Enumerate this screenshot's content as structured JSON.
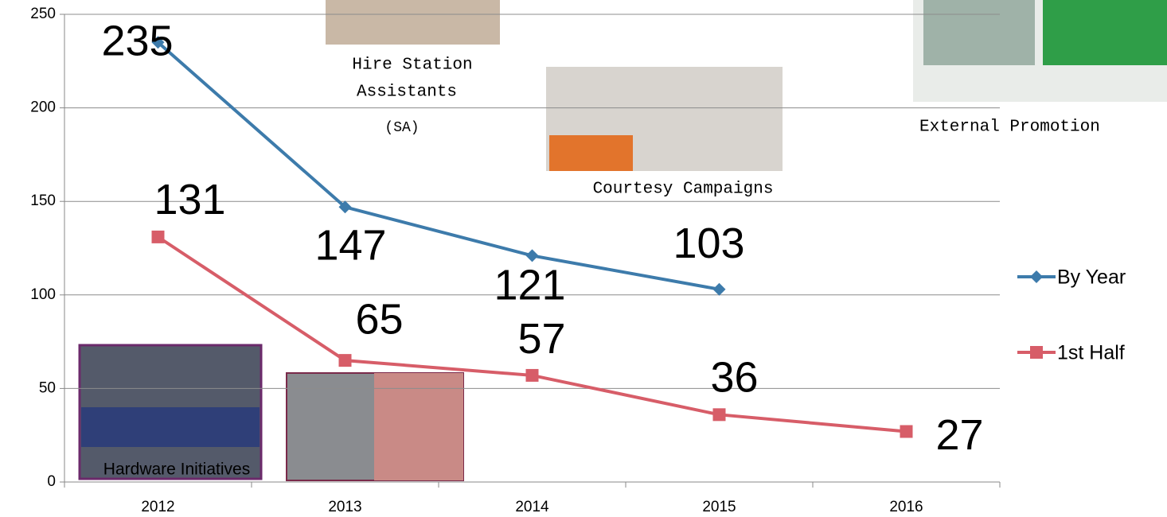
{
  "chart_data": {
    "type": "line",
    "categories": [
      "2012",
      "2013",
      "2014",
      "2015",
      "2016"
    ],
    "series": [
      {
        "name": "By Year",
        "color": "#3d7bab",
        "marker": "diamond",
        "values": [
          235,
          147,
          121,
          103,
          null
        ]
      },
      {
        "name": "1st Half",
        "color": "#d75d68",
        "marker": "square",
        "values": [
          131,
          65,
          57,
          36,
          27
        ]
      }
    ],
    "ylim": [
      0,
      250
    ],
    "yticks": [
      0,
      50,
      100,
      150,
      200,
      250
    ],
    "grid": true,
    "legend": "right",
    "annotations": [
      "Hire Station",
      "Assistants",
      "(SA)",
      "Courtesy Campaigns",
      "External Promotion",
      "Hardware Initiatives"
    ]
  }
}
